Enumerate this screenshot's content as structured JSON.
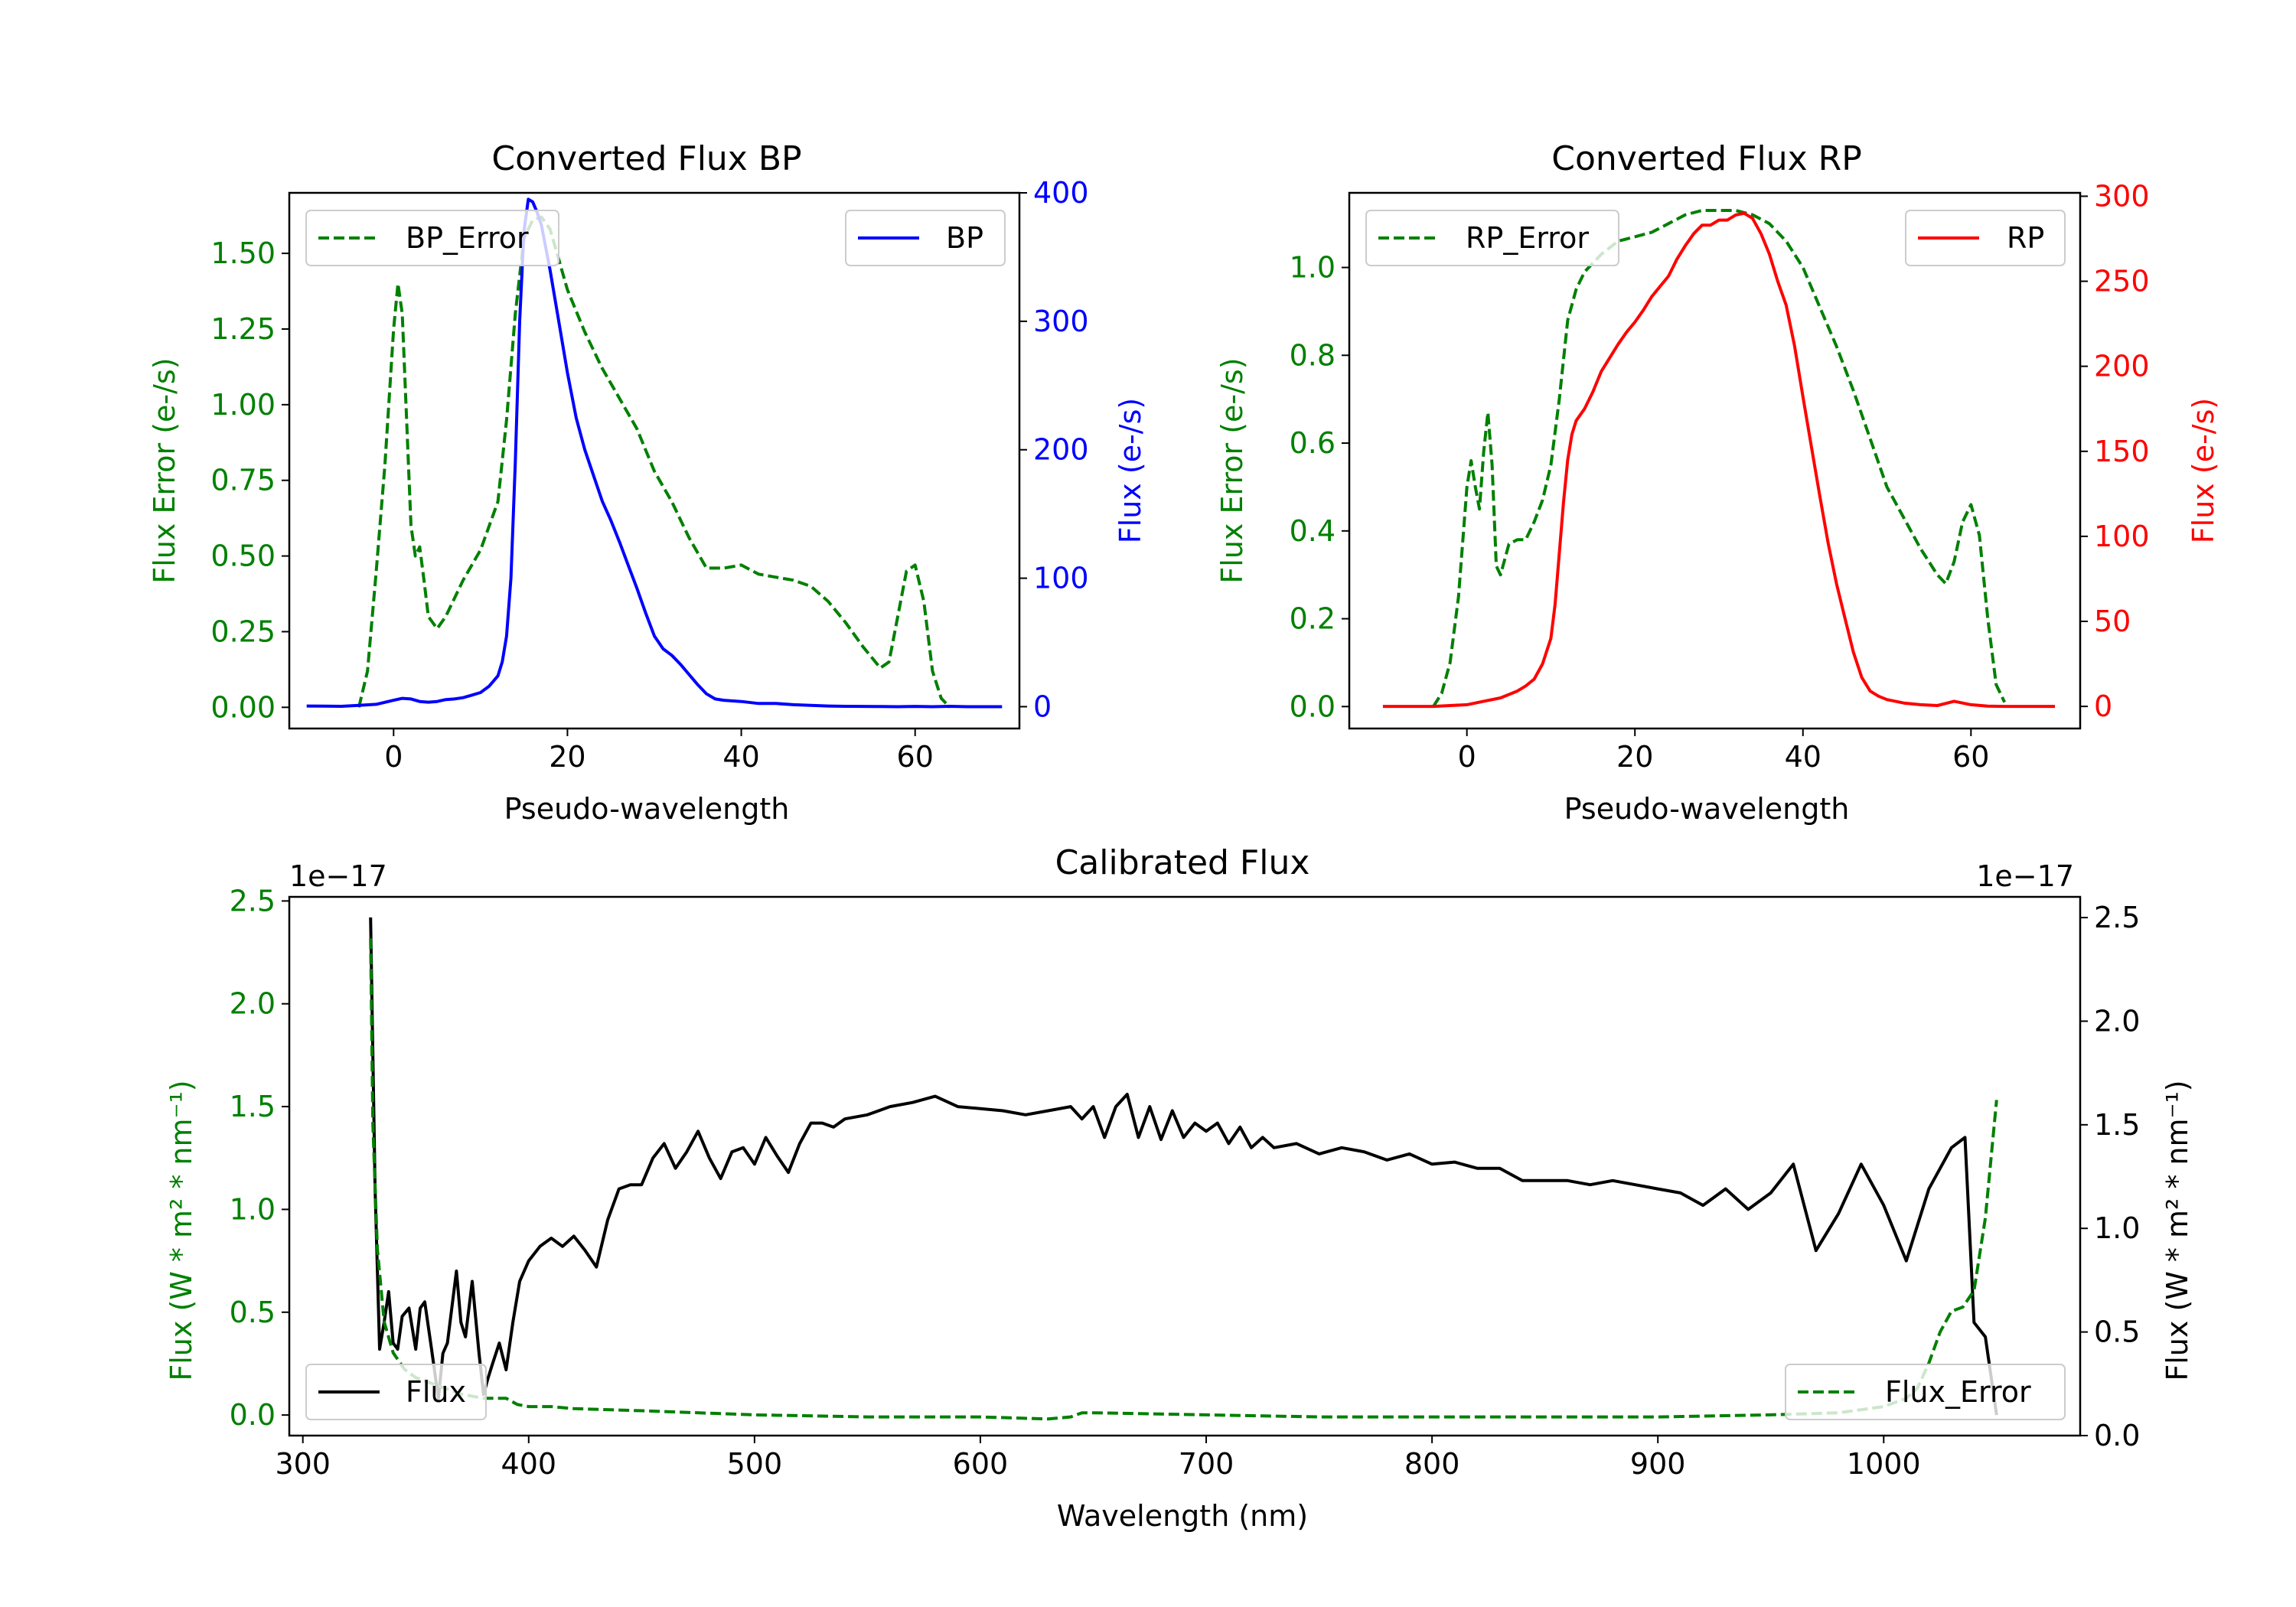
{
  "colors": {
    "error": "#008000",
    "bp": "#0000ff",
    "rp": "#ff0000",
    "flux": "#000000",
    "axis": "#000000"
  },
  "chart_data": [
    {
      "id": "bp",
      "type": "line",
      "title": "Converted Flux BP",
      "xlabel": "Pseudo-wavelength",
      "ylabel_left": "Flux Error (e-/s)",
      "ylabel_right": "Flux (e-/s)",
      "xlim": [
        -12,
        72
      ],
      "ylim_left": [
        -0.07,
        1.7
      ],
      "ylim_right": [
        -17,
        400
      ],
      "xticks": [
        0,
        20,
        40,
        60
      ],
      "xtick_labels": [
        "0",
        "20",
        "40",
        "60"
      ],
      "yticks_left": [
        0,
        0.25,
        0.5,
        0.75,
        1.0,
        1.25,
        1.5
      ],
      "ytick_labels_left": [
        "0.00",
        "0.25",
        "0.50",
        "0.75",
        "1.00",
        "1.25",
        "1.50"
      ],
      "yticks_right": [
        0,
        100,
        200,
        300,
        400
      ],
      "ytick_labels_right": [
        "0",
        "100",
        "200",
        "300",
        "400"
      ],
      "legend_left": "BP_Error",
      "legend_right": "BP",
      "series": [
        {
          "name": "BP_Error",
          "axis": "left",
          "style": "dashed",
          "color": "#008000",
          "x": [
            -4,
            -3,
            -2,
            -1,
            0,
            0.5,
            1,
            1.5,
            2,
            2.5,
            3,
            3.5,
            4,
            5,
            6,
            8,
            10,
            12,
            13,
            14,
            15,
            16,
            17,
            18,
            19,
            20,
            22,
            24,
            26,
            28,
            30,
            32,
            34,
            36,
            38,
            40,
            42,
            44,
            46,
            48,
            50,
            52,
            54,
            56,
            57,
            58,
            59,
            60,
            61,
            62,
            63,
            64
          ],
          "y": [
            0.0,
            0.12,
            0.45,
            0.8,
            1.25,
            1.4,
            1.3,
            0.95,
            0.6,
            0.5,
            0.53,
            0.42,
            0.3,
            0.26,
            0.3,
            0.42,
            0.52,
            0.68,
            0.95,
            1.3,
            1.55,
            1.61,
            1.62,
            1.58,
            1.48,
            1.38,
            1.24,
            1.12,
            1.02,
            0.92,
            0.78,
            0.68,
            0.56,
            0.46,
            0.46,
            0.47,
            0.44,
            0.43,
            0.42,
            0.4,
            0.35,
            0.28,
            0.2,
            0.13,
            0.15,
            0.3,
            0.45,
            0.47,
            0.35,
            0.12,
            0.03,
            0.0
          ]
        },
        {
          "name": "BP",
          "axis": "right",
          "style": "solid",
          "color": "#0000ff",
          "x": [
            -10,
            -8,
            -6,
            -4,
            -2,
            0,
            1,
            2,
            3,
            4,
            5,
            6,
            7,
            8,
            9,
            10,
            11,
            12,
            12.5,
            13,
            13.5,
            14,
            14.5,
            15,
            15.5,
            16,
            16.5,
            17,
            18,
            19,
            20,
            21,
            22,
            23,
            24,
            25,
            26,
            27,
            28,
            29,
            30,
            31,
            32,
            33,
            34,
            35,
            36,
            37,
            38,
            40,
            42,
            44,
            46,
            48,
            50,
            52,
            54,
            56,
            58,
            60,
            62,
            64,
            66,
            68,
            70
          ],
          "y": [
            0.5,
            0.4,
            0.3,
            1.0,
            1.8,
            5.0,
            6.5,
            6.0,
            4.0,
            3.5,
            4.0,
            5.5,
            6.0,
            7.0,
            9.0,
            11.0,
            16.0,
            24.0,
            35.0,
            55.0,
            100.0,
            190.0,
            300.0,
            370.0,
            395.0,
            393.0,
            385.0,
            375.0,
            340.0,
            300.0,
            260.0,
            225.0,
            200.0,
            180.0,
            160.0,
            145.0,
            128.0,
            110.0,
            92.0,
            73.0,
            55.0,
            45.0,
            40.0,
            33.0,
            25.0,
            17.0,
            10.0,
            6.0,
            5.0,
            4.0,
            2.5,
            2.5,
            1.5,
            1.0,
            0.5,
            0.3,
            0.2,
            0.1,
            0.0,
            0.2,
            0.0,
            0.3,
            0.0,
            0.0,
            0.0
          ]
        }
      ]
    },
    {
      "id": "rp",
      "type": "line",
      "title": "Converted Flux RP",
      "xlabel": "Pseudo-wavelength",
      "ylabel_left": "Flux Error (e-/s)",
      "ylabel_right": "Flux (e-/s)",
      "xlim": [
        -14,
        73
      ],
      "ylim_left": [
        -0.05,
        1.17
      ],
      "ylim_right": [
        -13,
        302
      ],
      "xticks": [
        0,
        20,
        40,
        60
      ],
      "xtick_labels": [
        "0",
        "20",
        "40",
        "60"
      ],
      "yticks_left": [
        0,
        0.2,
        0.4,
        0.6,
        0.8,
        1.0
      ],
      "ytick_labels_left": [
        "0.0",
        "0.2",
        "0.4",
        "0.6",
        "0.8",
        "1.0"
      ],
      "yticks_right": [
        0,
        50,
        100,
        150,
        200,
        250,
        300
      ],
      "ytick_labels_right": [
        "0",
        "50",
        "100",
        "150",
        "200",
        "250",
        "300"
      ],
      "legend_left": "RP_Error",
      "legend_right": "RP",
      "series": [
        {
          "name": "RP_Error",
          "axis": "left",
          "style": "dashed",
          "color": "#008000",
          "x": [
            -4,
            -3,
            -2,
            -1,
            0,
            0.5,
            1,
            1.5,
            2,
            2.5,
            3,
            3.5,
            4,
            5,
            6,
            7,
            8,
            9,
            10,
            11,
            12,
            13,
            14,
            15,
            16,
            18,
            20,
            22,
            24,
            26,
            28,
            30,
            32,
            34,
            36,
            38,
            40,
            42,
            44,
            46,
            48,
            50,
            52,
            54,
            56,
            57,
            58,
            59,
            60,
            61,
            62,
            63,
            64
          ],
          "y": [
            0.0,
            0.03,
            0.1,
            0.25,
            0.5,
            0.56,
            0.5,
            0.45,
            0.58,
            0.67,
            0.55,
            0.32,
            0.3,
            0.37,
            0.38,
            0.38,
            0.42,
            0.47,
            0.55,
            0.7,
            0.88,
            0.95,
            0.99,
            1.01,
            1.03,
            1.06,
            1.07,
            1.08,
            1.1,
            1.12,
            1.13,
            1.13,
            1.13,
            1.12,
            1.1,
            1.06,
            1.0,
            0.91,
            0.82,
            0.72,
            0.61,
            0.5,
            0.43,
            0.36,
            0.3,
            0.28,
            0.33,
            0.42,
            0.46,
            0.39,
            0.2,
            0.05,
            0.01
          ]
        },
        {
          "name": "RP",
          "axis": "right",
          "style": "solid",
          "color": "#ff0000",
          "x": [
            -10,
            -8,
            -6,
            -4,
            -2,
            0,
            2,
            4,
            6,
            7,
            8,
            9,
            10,
            10.5,
            11,
            11.5,
            12,
            12.5,
            13,
            14,
            15,
            16,
            17,
            18,
            19,
            20,
            21,
            22,
            23,
            24,
            25,
            26,
            27,
            28,
            29,
            30,
            31,
            32,
            33,
            34,
            35,
            36,
            37,
            38,
            39,
            40,
            41,
            42,
            43,
            44,
            45,
            46,
            47,
            48,
            49,
            50,
            52,
            54,
            56,
            58,
            60,
            62,
            64,
            66,
            68,
            70
          ],
          "y": [
            0.0,
            0.0,
            0.0,
            0.0,
            0.5,
            1.0,
            3.0,
            5.0,
            9.0,
            12.0,
            16.0,
            25.0,
            40.0,
            60.0,
            90.0,
            120.0,
            145.0,
            160.0,
            168.0,
            175.0,
            185.0,
            197.0,
            205.0,
            213.0,
            220.0,
            226.0,
            233.0,
            241.0,
            247.0,
            253.0,
            263.0,
            271.0,
            278.0,
            283.0,
            283.0,
            286.0,
            286.0,
            289.0,
            290.0,
            287.0,
            278.0,
            266.0,
            250.0,
            236.0,
            212.0,
            182.0,
            153.0,
            124.0,
            96.0,
            72.0,
            52.0,
            32.0,
            17.0,
            9.0,
            6.0,
            4.0,
            2.0,
            1.0,
            0.5,
            3.0,
            1.0,
            0.2,
            0.0,
            0.0,
            0.0,
            0.0
          ]
        }
      ]
    },
    {
      "id": "cal",
      "type": "line",
      "title": "Calibrated Flux",
      "xlabel": "Wavelength (nm)",
      "ylabel_left": "Flux (W * m² * nm⁻¹)",
      "ylabel_right": "Flux (W * m² * nm⁻¹)",
      "offset_left": "1e−17",
      "offset_right": "1e−17",
      "xlim": [
        294,
        1087
      ],
      "ylim_left": [
        -0.1,
        2.52
      ],
      "ylim_right": [
        0,
        2.6
      ],
      "xticks": [
        300,
        400,
        500,
        600,
        700,
        800,
        900,
        1000
      ],
      "xtick_labels": [
        "300",
        "400",
        "500",
        "600",
        "700",
        "800",
        "900",
        "1000"
      ],
      "yticks_left": [
        0,
        0.5,
        1.0,
        1.5,
        2.0,
        2.5
      ],
      "ytick_labels_left": [
        "0.0",
        "0.5",
        "1.0",
        "1.5",
        "2.0",
        "2.5"
      ],
      "yticks_right": [
        0,
        0.5,
        1.0,
        1.5,
        2.0,
        2.5
      ],
      "ytick_labels_right": [
        "0.0",
        "0.5",
        "1.0",
        "1.5",
        "2.0",
        "2.5"
      ],
      "legend_left": "Flux",
      "legend_right": "Flux_Error",
      "series": [
        {
          "name": "Flux",
          "axis": "left",
          "style": "solid",
          "color": "#000000",
          "x": [
            330,
            332,
            334,
            336,
            338,
            340,
            342,
            344,
            347,
            350,
            352,
            354,
            357,
            360,
            362,
            364,
            368,
            370,
            372,
            375,
            378,
            380,
            382,
            384,
            387,
            390,
            393,
            396,
            400,
            405,
            410,
            415,
            420,
            425,
            430,
            435,
            440,
            445,
            450,
            455,
            460,
            465,
            470,
            475,
            480,
            485,
            490,
            495,
            500,
            505,
            510,
            515,
            520,
            525,
            530,
            535,
            540,
            550,
            560,
            570,
            580,
            590,
            600,
            610,
            620,
            630,
            640,
            645,
            650,
            655,
            660,
            665,
            670,
            675,
            680,
            685,
            690,
            695,
            700,
            705,
            710,
            715,
            720,
            725,
            730,
            740,
            750,
            760,
            770,
            780,
            790,
            800,
            810,
            820,
            830,
            840,
            850,
            860,
            870,
            880,
            890,
            900,
            910,
            920,
            930,
            940,
            950,
            960,
            970,
            980,
            990,
            1000,
            1010,
            1020,
            1030,
            1036,
            1040,
            1045,
            1050
          ],
          "y": [
            2.42,
            1.1,
            0.32,
            0.45,
            0.6,
            0.35,
            0.32,
            0.48,
            0.52,
            0.32,
            0.52,
            0.55,
            0.32,
            0.08,
            0.3,
            0.35,
            0.7,
            0.45,
            0.38,
            0.65,
            0.3,
            0.1,
            0.18,
            0.25,
            0.35,
            0.22,
            0.45,
            0.65,
            0.75,
            0.82,
            0.86,
            0.82,
            0.87,
            0.8,
            0.72,
            0.95,
            1.1,
            1.12,
            1.12,
            1.25,
            1.32,
            1.2,
            1.28,
            1.38,
            1.25,
            1.15,
            1.28,
            1.3,
            1.22,
            1.35,
            1.26,
            1.18,
            1.32,
            1.42,
            1.42,
            1.4,
            1.44,
            1.46,
            1.5,
            1.52,
            1.55,
            1.5,
            1.49,
            1.48,
            1.46,
            1.48,
            1.5,
            1.44,
            1.5,
            1.35,
            1.5,
            1.56,
            1.35,
            1.5,
            1.34,
            1.48,
            1.35,
            1.42,
            1.38,
            1.42,
            1.32,
            1.4,
            1.3,
            1.35,
            1.3,
            1.32,
            1.27,
            1.3,
            1.28,
            1.24,
            1.27,
            1.22,
            1.23,
            1.2,
            1.2,
            1.14,
            1.14,
            1.14,
            1.12,
            1.14,
            1.12,
            1.1,
            1.08,
            1.02,
            1.1,
            1.0,
            1.08,
            1.22,
            0.8,
            0.98,
            1.22,
            1.02,
            0.75,
            1.1,
            1.3,
            1.35,
            0.45,
            0.38,
            0.0
          ]
        },
        {
          "name": "Flux_Error",
          "axis": "right",
          "style": "dashed",
          "color": "#008000",
          "x": [
            330,
            331,
            333,
            336,
            340,
            345,
            350,
            360,
            370,
            380,
            390,
            395,
            400,
            410,
            420,
            450,
            500,
            550,
            600,
            630,
            640,
            645,
            650,
            700,
            750,
            800,
            850,
            900,
            950,
            980,
            1000,
            1010,
            1015,
            1020,
            1025,
            1030,
            1035,
            1040,
            1045,
            1050
          ],
          "y": [
            2.4,
            1.5,
            0.9,
            0.55,
            0.4,
            0.32,
            0.28,
            0.24,
            0.2,
            0.18,
            0.18,
            0.15,
            0.14,
            0.14,
            0.13,
            0.12,
            0.1,
            0.09,
            0.09,
            0.08,
            0.09,
            0.11,
            0.11,
            0.1,
            0.09,
            0.09,
            0.09,
            0.09,
            0.1,
            0.11,
            0.14,
            0.18,
            0.23,
            0.35,
            0.5,
            0.6,
            0.62,
            0.7,
            1.05,
            1.62
          ]
        }
      ]
    }
  ]
}
